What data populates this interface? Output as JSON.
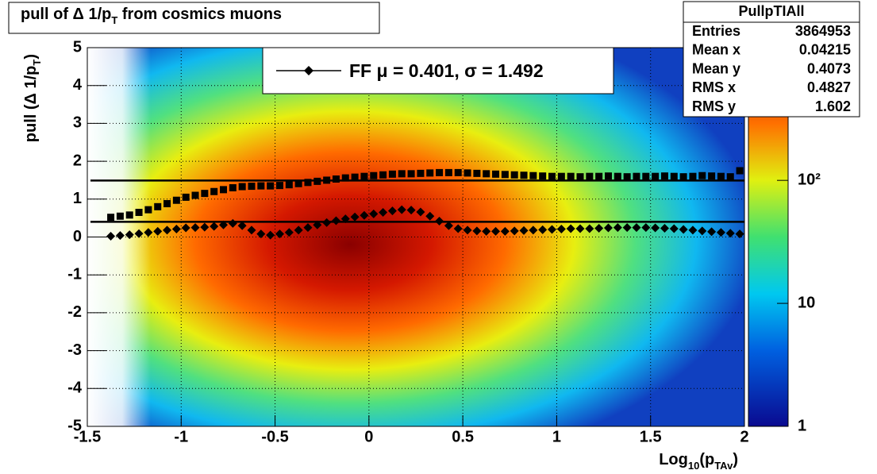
{
  "chart_data": {
    "type": "scatter",
    "title": [
      "pull of Δ 1/p",
      "T",
      " from cosmics muons"
    ],
    "x_label": [
      "Log",
      "10",
      "(p",
      "TAv",
      ")"
    ],
    "y_label": [
      "pull (Δ 1/p",
      "T",
      ")"
    ],
    "xlim": [
      -1.5,
      2
    ],
    "ylim": [
      -5,
      5
    ],
    "xticks": [
      -1.5,
      -1,
      -0.5,
      0,
      0.5,
      1,
      1.5,
      2
    ],
    "yticks": [
      -5,
      -4,
      -3,
      -2,
      -1,
      0,
      1,
      2,
      3,
      4,
      5
    ],
    "grid": true,
    "x": [
      -1.375,
      -1.325,
      -1.275,
      -1.225,
      -1.175,
      -1.125,
      -1.075,
      -1.025,
      -0.975,
      -0.925,
      -0.875,
      -0.825,
      -0.775,
      -0.725,
      -0.675,
      -0.625,
      -0.575,
      -0.525,
      -0.475,
      -0.425,
      -0.375,
      -0.325,
      -0.275,
      -0.225,
      -0.175,
      -0.125,
      -0.075,
      -0.025,
      0.025,
      0.075,
      0.125,
      0.175,
      0.225,
      0.275,
      0.325,
      0.375,
      0.425,
      0.475,
      0.525,
      0.575,
      0.625,
      0.675,
      0.725,
      0.775,
      0.825,
      0.875,
      0.925,
      0.975,
      1.025,
      1.075,
      1.125,
      1.175,
      1.225,
      1.275,
      1.325,
      1.375,
      1.425,
      1.475,
      1.525,
      1.575,
      1.625,
      1.675,
      1.725,
      1.775,
      1.825,
      1.875,
      1.925,
      1.975
    ],
    "series": [
      {
        "marker": "square",
        "color": "#000000",
        "values": [
          0.52,
          0.55,
          0.58,
          0.65,
          0.72,
          0.8,
          0.88,
          0.97,
          1.05,
          1.1,
          1.15,
          1.2,
          1.25,
          1.3,
          1.33,
          1.34,
          1.35,
          1.35,
          1.36,
          1.38,
          1.41,
          1.44,
          1.47,
          1.5,
          1.53,
          1.56,
          1.58,
          1.6,
          1.62,
          1.64,
          1.66,
          1.67,
          1.67,
          1.68,
          1.69,
          1.7,
          1.7,
          1.7,
          1.69,
          1.68,
          1.67,
          1.66,
          1.65,
          1.64,
          1.63,
          1.62,
          1.61,
          1.6,
          1.6,
          1.6,
          1.59,
          1.6,
          1.6,
          1.61,
          1.6,
          1.59,
          1.6,
          1.6,
          1.6,
          1.61,
          1.6,
          1.59,
          1.6,
          1.62,
          1.61,
          1.6,
          1.59,
          1.75
        ]
      },
      {
        "marker": "diamond",
        "color": "#000000",
        "values": [
          0.02,
          0.04,
          0.06,
          0.09,
          0.12,
          0.15,
          0.18,
          0.21,
          0.24,
          0.25,
          0.26,
          0.28,
          0.32,
          0.36,
          0.3,
          0.18,
          0.08,
          0.05,
          0.08,
          0.12,
          0.18,
          0.25,
          0.32,
          0.38,
          0.43,
          0.48,
          0.53,
          0.57,
          0.61,
          0.65,
          0.69,
          0.72,
          0.71,
          0.66,
          0.55,
          0.42,
          0.3,
          0.22,
          0.18,
          0.16,
          0.15,
          0.15,
          0.15,
          0.16,
          0.17,
          0.18,
          0.19,
          0.2,
          0.21,
          0.22,
          0.22,
          0.22,
          0.23,
          0.24,
          0.25,
          0.25,
          0.25,
          0.25,
          0.24,
          0.23,
          0.22,
          0.2,
          0.18,
          0.16,
          0.14,
          0.12,
          0.1,
          0.08
        ]
      }
    ],
    "fit": {
      "mu": 0.401,
      "sigma": 1.492
    },
    "legend": {
      "label": "FF μ =  0.401, σ =   1.492",
      "corner": "top"
    },
    "colorbar": {
      "log": true,
      "zlim": [
        1,
        1200
      ],
      "ticks": [
        1,
        10,
        {
          "value": 100,
          "label": "10²"
        }
      ]
    },
    "stats": {
      "title": "PullpTIAll",
      "rows": [
        [
          "Entries",
          "3864953"
        ],
        [
          "Mean x",
          "0.04215"
        ],
        [
          "Mean y",
          "0.4073"
        ],
        [
          "RMS x",
          "0.4827"
        ],
        [
          "RMS y",
          "1.602"
        ]
      ]
    }
  }
}
